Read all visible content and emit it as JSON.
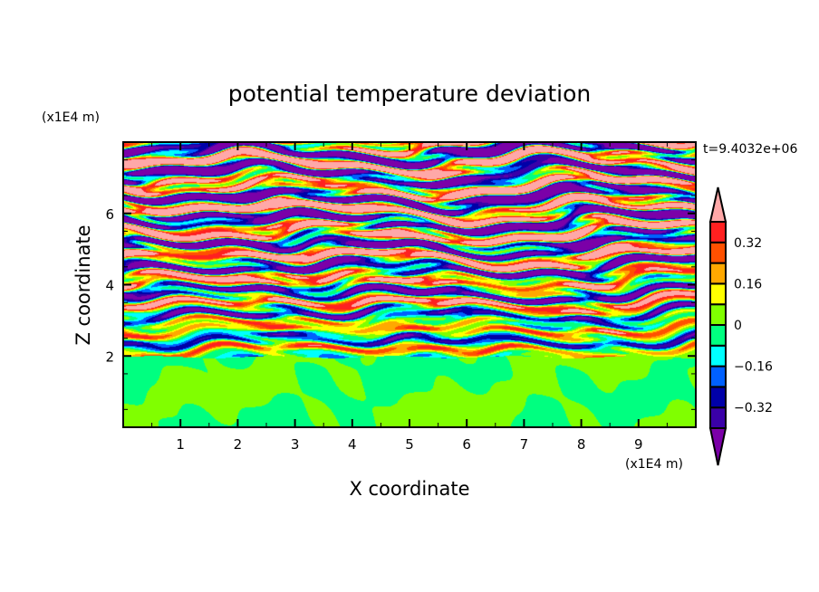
{
  "chart_data": {
    "type": "heatmap",
    "title": "potential temperature deviation",
    "xlabel": "X coordinate",
    "ylabel": "Z coordinate",
    "x_unit": "(x1E4 m)",
    "y_unit": "(x1E4 m)",
    "time_label": "t=9.4032e+06",
    "xlim": [
      0,
      10
    ],
    "ylim": [
      0,
      8
    ],
    "x_ticks": [
      1,
      2,
      3,
      4,
      5,
      6,
      7,
      8,
      9
    ],
    "y_ticks": [
      2,
      4,
      6
    ],
    "x_tick_labels": [
      "1",
      "2",
      "3",
      "4",
      "5",
      "6",
      "7",
      "8",
      "9"
    ],
    "y_tick_labels": [
      "2",
      "4",
      "6"
    ],
    "levels": [
      -0.4,
      -0.32,
      -0.24,
      -0.16,
      -0.08,
      0,
      0.08,
      0.16,
      0.24,
      0.32,
      0.4
    ],
    "colors": [
      "#7b00a8",
      "#3a00a8",
      "#0000a8",
      "#0060ff",
      "#00ffff",
      "#00ff80",
      "#80ff00",
      "#ffff00",
      "#ffa800",
      "#ff5000",
      "#ff2020",
      "#ffa8a8"
    ],
    "colorbar_labels": [
      {
        "value": 0.32,
        "label": "0.32"
      },
      {
        "value": 0.16,
        "label": "0.16"
      },
      {
        "value": 0,
        "label": "0"
      },
      {
        "value": -0.16,
        "label": "−0.16"
      },
      {
        "value": -0.32,
        "label": "−0.32"
      }
    ],
    "description_regions": {
      "stable_layer_top_z": 2,
      "values_below": [
        -0.08,
        0.08
      ]
    }
  }
}
